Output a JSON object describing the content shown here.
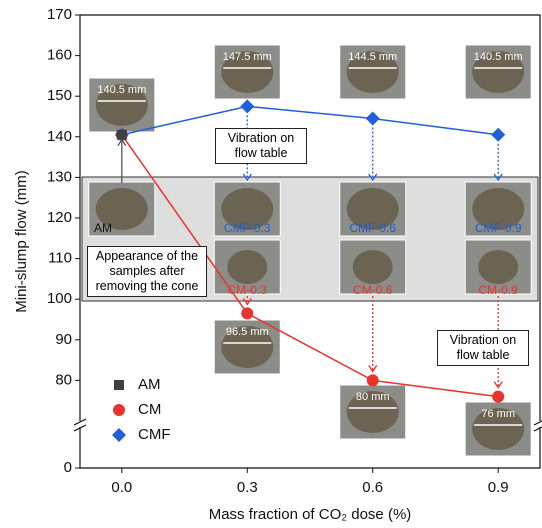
{
  "chart_data": {
    "type": "line",
    "xlabel": "Mass fraction of CO₂ dose (%)",
    "ylabel": "Mini-slump flow (mm)",
    "x": [
      0,
      0.3,
      0.6,
      0.9
    ],
    "xlim": [
      -0.1,
      1.0
    ],
    "xticks": [
      {
        "value": 0,
        "label": "0.0"
      },
      0.3,
      0.6,
      0.9
    ],
    "ylim": [
      0,
      170
    ],
    "ybreak": [
      10,
      70
    ],
    "yticks": [
      0,
      80,
      90,
      100,
      110,
      120,
      130,
      140,
      150,
      160,
      170
    ],
    "legend": "lower left",
    "series": [
      {
        "name": "AM",
        "color": "#404040",
        "marker": "square",
        "values": [
          140.5,
          null,
          null,
          null
        ],
        "value_labels": [
          "140.5 mm",
          null,
          null,
          null
        ]
      },
      {
        "name": "CM",
        "color": "#e8342c",
        "marker": "circle",
        "values": [
          140.5,
          96.5,
          80,
          76
        ],
        "value_labels": [
          null,
          "96.5 mm",
          "80 mm",
          "76 mm"
        ]
      },
      {
        "name": "CMF",
        "color": "#1f5fd8",
        "marker": "diamond",
        "values": [
          140.5,
          147.5,
          144.5,
          140.5
        ],
        "value_labels": [
          null,
          "147.5 mm",
          "144.5 mm",
          "140.5 mm"
        ]
      }
    ],
    "annotations": [
      "Vibration on flow table",
      "Appearance of the samples after removing the cone",
      "Vibration on flow table"
    ],
    "sample_labels": [
      "AM",
      "CMF-0.3",
      "CMF-0.6",
      "CMF-0.9",
      "CM-0.3",
      "CM-0.6",
      "CM-0.9"
    ]
  }
}
